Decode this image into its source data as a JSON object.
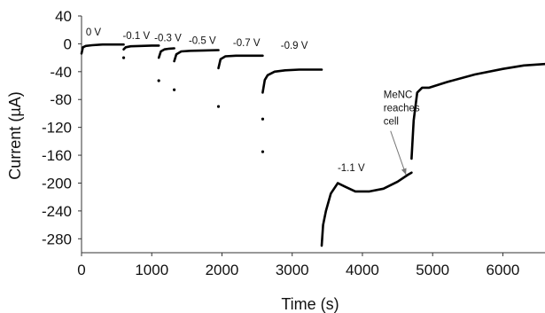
{
  "chart_data": {
    "type": "scatter",
    "title": "",
    "xlabel": "Time (s)",
    "ylabel": "Current (µA)",
    "xlim": [
      0,
      6600
    ],
    "ylim": [
      -300,
      40
    ],
    "xticks": [
      0,
      1000,
      2000,
      3000,
      4000,
      5000,
      6000
    ],
    "yticks": [
      40,
      0,
      -40,
      -80,
      -120,
      -160,
      -200,
      -240,
      -280
    ],
    "grid": false,
    "legend": "none",
    "color": "#000000",
    "series": [
      {
        "segments": [
          {
            "x": [
              0,
              20,
              60,
              150,
              300,
              450,
              600
            ],
            "y": [
              -14,
              -5,
              -3,
              -2,
              -1,
              -1,
              -1
            ]
          },
          {
            "x": [
              600,
              630,
              700,
              850,
              1000,
              1100
            ],
            "y": [
              -8,
              -5,
              -3.5,
              -3,
              -2.5,
              -2.5
            ]
          },
          {
            "x": [
              1100,
              1130,
              1180,
              1250,
              1320
            ],
            "y": [
              -20,
              -11,
              -8,
              -7,
              -6.5
            ]
          },
          {
            "x": [
              1320,
              1350,
              1420,
              1550,
              1750,
              1950
            ],
            "y": [
              -25,
              -15,
              -11,
              -10,
              -9.5,
              -9
            ]
          },
          {
            "x": [
              1950,
              1980,
              2050,
              2200,
              2400,
              2580
            ],
            "y": [
              -35,
              -22,
              -18,
              -17,
              -17,
              -17
            ]
          },
          {
            "x": [
              2580,
              2610,
              2650,
              2750,
              2900,
              3100,
              3300,
              3420
            ],
            "y": [
              -70,
              -52,
              -45,
              -40,
              -38,
              -37,
              -37,
              -37
            ]
          },
          {
            "x": [
              3420,
              3440,
              3480,
              3550,
              3650,
              3750,
              3900,
              4100,
              4300,
              4500,
              4650,
              4700
            ],
            "y": [
              -290,
              -260,
              -240,
              -215,
              -200,
              -205,
              -212,
              -212,
              -208,
              -198,
              -188,
              -185
            ]
          },
          {
            "x": [
              4700,
              4730,
              4780,
              4850,
              4950,
              5200,
              5600,
              6000,
              6300,
              6600
            ],
            "y": [
              -165,
              -110,
              -70,
              -63,
              -63,
              -55,
              -44,
              -36,
              -31,
              -29
            ]
          }
        ],
        "outliers": [
          {
            "x": 600,
            "y": -20
          },
          {
            "x": 1100,
            "y": -53
          },
          {
            "x": 1320,
            "y": -66
          },
          {
            "x": 1950,
            "y": -90
          },
          {
            "x": 2580,
            "y": -108
          },
          {
            "x": 2580,
            "y": -155
          }
        ]
      }
    ],
    "annotations": [
      {
        "text": "0 V",
        "x": 170,
        "y": 12
      },
      {
        "text": "-0.1 V",
        "x": 780,
        "y": 7
      },
      {
        "text": "-0.3 V",
        "x": 1230,
        "y": 4
      },
      {
        "text": "-0.5 V",
        "x": 1720,
        "y": 0
      },
      {
        "text": "-0.7 V",
        "x": 2350,
        "y": -3
      },
      {
        "text": "-0.9 V",
        "x": 3030,
        "y": -7
      },
      {
        "text": "-1.1 V",
        "x": 3840,
        "y": -183
      }
    ],
    "callout": {
      "lines": [
        "MeNC",
        "reaches",
        "cell"
      ],
      "x": 4300,
      "y": -78,
      "arrow_to": [
        4620,
        -188
      ]
    }
  }
}
